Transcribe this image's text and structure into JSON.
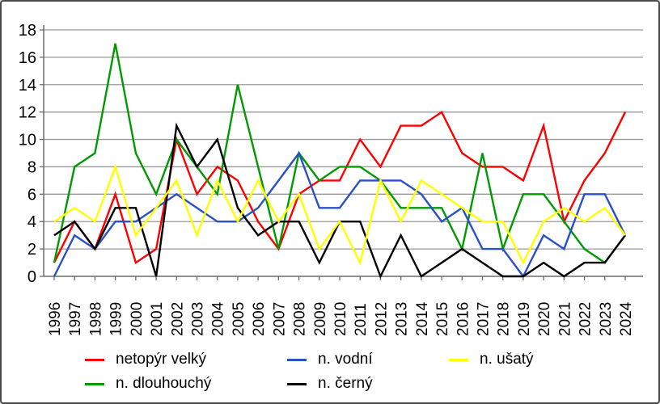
{
  "chart_data": {
    "type": "line",
    "x": [
      1996,
      1997,
      1998,
      1999,
      2000,
      2001,
      2002,
      2003,
      2004,
      2005,
      2006,
      2007,
      2008,
      2009,
      2010,
      2011,
      2012,
      2013,
      2014,
      2015,
      2016,
      2017,
      2018,
      2019,
      2020,
      2021,
      2022,
      2023,
      2024
    ],
    "series": [
      {
        "name": "netopýr velký",
        "color": "#fe0000",
        "values": [
          1,
          4,
          2,
          6,
          1,
          2,
          10,
          6,
          8,
          7,
          4,
          2,
          6,
          7,
          7,
          10,
          8,
          11,
          11,
          12,
          9,
          8,
          8,
          7,
          11,
          4,
          7,
          9,
          12
        ]
      },
      {
        "name": "n. dlouhouchý",
        "color": "#029a02",
        "values": [
          1,
          8,
          9,
          17,
          9,
          6,
          10,
          8,
          6,
          14,
          8,
          2,
          9,
          7,
          8,
          8,
          7,
          5,
          5,
          5,
          2,
          9,
          2,
          6,
          6,
          4,
          2,
          1,
          3
        ]
      },
      {
        "name": "n. vodní",
        "color": "#2a50c8",
        "values": [
          0,
          3,
          2,
          4,
          4,
          5,
          6,
          5,
          4,
          4,
          5,
          7,
          9,
          5,
          5,
          7,
          7,
          7,
          6,
          4,
          5,
          2,
          2,
          0,
          3,
          2,
          6,
          6,
          3
        ]
      },
      {
        "name": "n. černý",
        "color": "#000000",
        "values": [
          3,
          4,
          2,
          5,
          5,
          0,
          11,
          8,
          10,
          5,
          3,
          4,
          4,
          1,
          4,
          4,
          0,
          3,
          0,
          1,
          2,
          1,
          0,
          0,
          1,
          0,
          1,
          1,
          3
        ]
      },
      {
        "name": "n. ušatý",
        "color": "#ffff00",
        "values": [
          4,
          5,
          4,
          8,
          3,
          5,
          7,
          3,
          7,
          4,
          7,
          4,
          6,
          2,
          4,
          1,
          7,
          4,
          7,
          6,
          5,
          4,
          4,
          1,
          4,
          5,
          4,
          5,
          3
        ]
      }
    ],
    "ylim": [
      0,
      18
    ],
    "ytick_step": 2,
    "yticks": [
      "0",
      "2",
      "4",
      "6",
      "8",
      "10",
      "12",
      "14",
      "16",
      "18"
    ],
    "grid": true,
    "legend_position": "bottom",
    "title": "",
    "xlabel": "",
    "ylabel": ""
  }
}
